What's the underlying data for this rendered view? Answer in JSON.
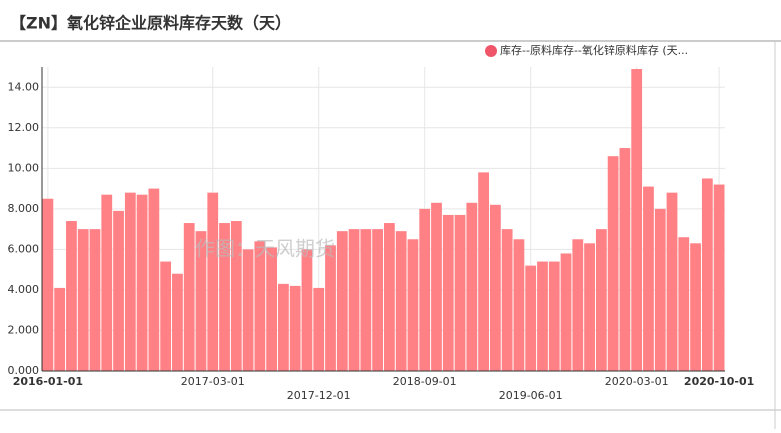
{
  "chart_data": {
    "type": "bar",
    "title": "【ZN】氧化锌企业原料库存天数（天）",
    "annotation": "作图：天风期货",
    "categories": [
      "2016-01-01",
      null,
      null,
      null,
      null,
      null,
      null,
      null,
      null,
      null,
      null,
      null,
      null,
      null,
      "2017-03-01",
      null,
      null,
      null,
      null,
      null,
      null,
      null,
      null,
      "2017-12-01",
      null,
      null,
      null,
      null,
      null,
      null,
      null,
      null,
      "2018-09-01",
      null,
      null,
      null,
      null,
      null,
      null,
      null,
      null,
      "2019-06-01",
      null,
      null,
      null,
      null,
      null,
      null,
      null,
      null,
      "2020-03-01",
      null,
      null,
      null,
      null,
      null,
      null,
      "2020-10-01"
    ],
    "series": [
      {
        "name": "库存--原料库存--氧化锌原料库存 (天...",
        "color": "#ff8085",
        "values": [
          8.5,
          4.1,
          7.4,
          7.0,
          7.0,
          8.7,
          7.9,
          8.8,
          8.7,
          9.0,
          5.4,
          4.8,
          7.3,
          6.9,
          8.8,
          7.3,
          7.4,
          6.0,
          6.4,
          6.1,
          4.3,
          4.2,
          6.0,
          4.1,
          6.2,
          6.9,
          7.0,
          7.0,
          7.0,
          7.3,
          6.9,
          6.5,
          8.0,
          8.3,
          7.7,
          7.7,
          8.3,
          9.8,
          8.2,
          7.0,
          6.5,
          5.2,
          5.4,
          5.4,
          5.8,
          6.5,
          6.3,
          7.0,
          10.6,
          11.0,
          14.9,
          9.1,
          8.0,
          8.8,
          6.6,
          6.3,
          9.5,
          9.2
        ]
      }
    ],
    "legend_marker_color": "#f0566a",
    "ylim": [
      0,
      15
    ],
    "yticks": [
      {
        "value": 0,
        "label": "0.000"
      },
      {
        "value": 2,
        "label": "2.000"
      },
      {
        "value": 4,
        "label": "4.000"
      },
      {
        "value": 6,
        "label": "6.000"
      },
      {
        "value": 8,
        "label": "8.000"
      },
      {
        "value": 10,
        "label": "10.00"
      },
      {
        "value": 12,
        "label": "12.00"
      },
      {
        "value": 14,
        "label": "14.00"
      }
    ],
    "grid": true
  }
}
